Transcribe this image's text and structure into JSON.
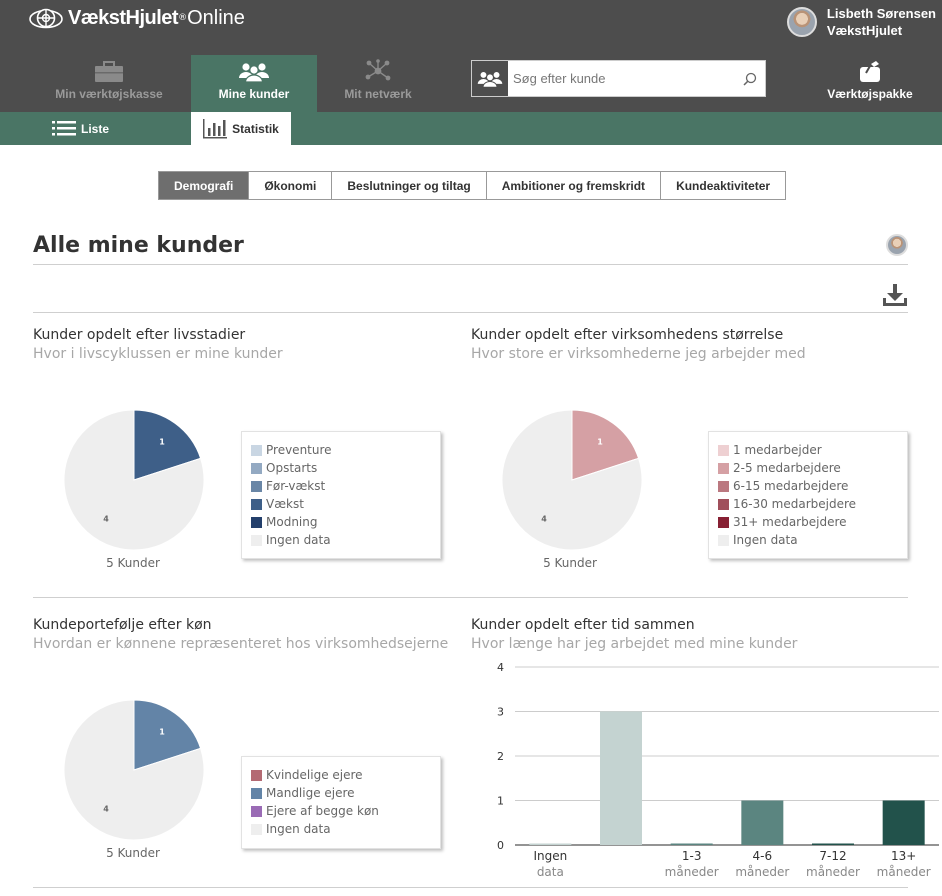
{
  "header": {
    "logo_name": "VækstHjulet",
    "logo_reg": "®",
    "logo_suffix": "Online",
    "user_name": "Lisbeth Sørensen",
    "user_org": "VækstHjulet"
  },
  "nav": {
    "tools_label": "Min værktøjskasse",
    "clients_label": "Mine kunder",
    "network_label": "Mit netværk",
    "toolpack_label": "Værktøjspakke",
    "search_placeholder": "Søg efter kunde"
  },
  "subnav": {
    "list_label": "Liste",
    "stats_label": "Statistik"
  },
  "tabs": [
    "Demografi",
    "Økonomi",
    "Beslutninger og tiltag",
    "Ambitioner og fremskridt",
    "Kundeaktiviteter"
  ],
  "active_tab": 0,
  "page_title": "Alle mine kunder",
  "colors": {
    "header_bg": "#4d4d4d",
    "accent_green": "#4a7565"
  },
  "icons": {
    "logo": "wheel-logo-icon",
    "tools": "toolbox-icon",
    "clients": "people-icon",
    "network": "network-icon",
    "toolpack": "toolpack-icon",
    "search_badge": "people-icon",
    "search": "magnifier-icon",
    "list": "list-icon",
    "stats": "bar-chart-icon",
    "download": "download-icon"
  },
  "panels": {
    "lifecycle": {
      "title": "Kunder opdelt efter livsstadier",
      "subtitle": "Hvor i livscyklussen er mine kunder"
    },
    "size": {
      "title": "Kunder opdelt efter virksomhedens størrelse",
      "subtitle": "Hvor store er virksomhederne jeg arbejder med"
    },
    "gender": {
      "title": "Kundeportefølje efter køn",
      "subtitle": "Hvordan er kønnene repræsenteret hos virksomhedsejerne"
    },
    "time": {
      "title": "Kunder opdelt efter tid sammen",
      "subtitle": "Hvor længe har jeg arbejdet med mine kunder"
    }
  },
  "chart_data": [
    {
      "type": "pie",
      "total_label": "5 Kunder",
      "legend": [
        {
          "label": "Preventure",
          "color": "#c9d6e3"
        },
        {
          "label": "Opstarts",
          "color": "#93a9c2"
        },
        {
          "label": "Før-vækst",
          "color": "#6986a6"
        },
        {
          "label": "Vækst",
          "color": "#3e5f88"
        },
        {
          "label": "Modning",
          "color": "#233f6b"
        },
        {
          "label": "Ingen data",
          "color": "#eeeeee"
        }
      ],
      "slices": [
        {
          "label": "Vækst",
          "value": 1,
          "color": "#3e5f88"
        },
        {
          "label": "Ingen data",
          "value": 4,
          "color": "#eeeeee"
        }
      ]
    },
    {
      "type": "pie",
      "total_label": "5 Kunder",
      "legend": [
        {
          "label": "1 medarbejder",
          "color": "#eed0d2"
        },
        {
          "label": "2-5 medarbejdere",
          "color": "#d5a0a4"
        },
        {
          "label": "6-15 medarbejdere",
          "color": "#bb7880"
        },
        {
          "label": "16-30 medarbejdere",
          "color": "#a04f5b"
        },
        {
          "label": "31+ medarbejdere",
          "color": "#872033"
        },
        {
          "label": "Ingen data",
          "color": "#eeeeee"
        }
      ],
      "slices": [
        {
          "label": "2-5 medarbejdere",
          "value": 1,
          "color": "#d5a0a4"
        },
        {
          "label": "Ingen data",
          "value": 4,
          "color": "#eeeeee"
        }
      ]
    },
    {
      "type": "pie",
      "total_label": "5 Kunder",
      "legend": [
        {
          "label": "Kvindelige ejere",
          "color": "#b46a73"
        },
        {
          "label": "Mandlige ejere",
          "color": "#6384a7"
        },
        {
          "label": "Ejere af begge køn",
          "color": "#9a6bb5"
        },
        {
          "label": "Ingen data",
          "color": "#eeeeee"
        }
      ],
      "slices": [
        {
          "label": "Mandlige ejere",
          "value": 1,
          "color": "#6384a7"
        },
        {
          "label": "Ingen data",
          "value": 4,
          "color": "#eeeeee"
        }
      ]
    },
    {
      "type": "bar",
      "categories": [
        [
          "Ingen",
          "data"
        ],
        [
          "",
          ""
        ],
        [
          "1-3",
          "måneder"
        ],
        [
          "4-6",
          "måneder"
        ],
        [
          "7-12",
          "måneder"
        ],
        [
          "13+",
          "måneder"
        ]
      ],
      "values": [
        0,
        3,
        0,
        1,
        0,
        1
      ],
      "colors": [
        "#c4d3d1",
        "#c4d3d1",
        "#5b8580",
        "#5b8580",
        "#22524b",
        "#22524b"
      ],
      "ylim": [
        0,
        4
      ],
      "yticks": [
        0,
        1,
        2,
        3,
        4
      ],
      "grid": true
    }
  ]
}
